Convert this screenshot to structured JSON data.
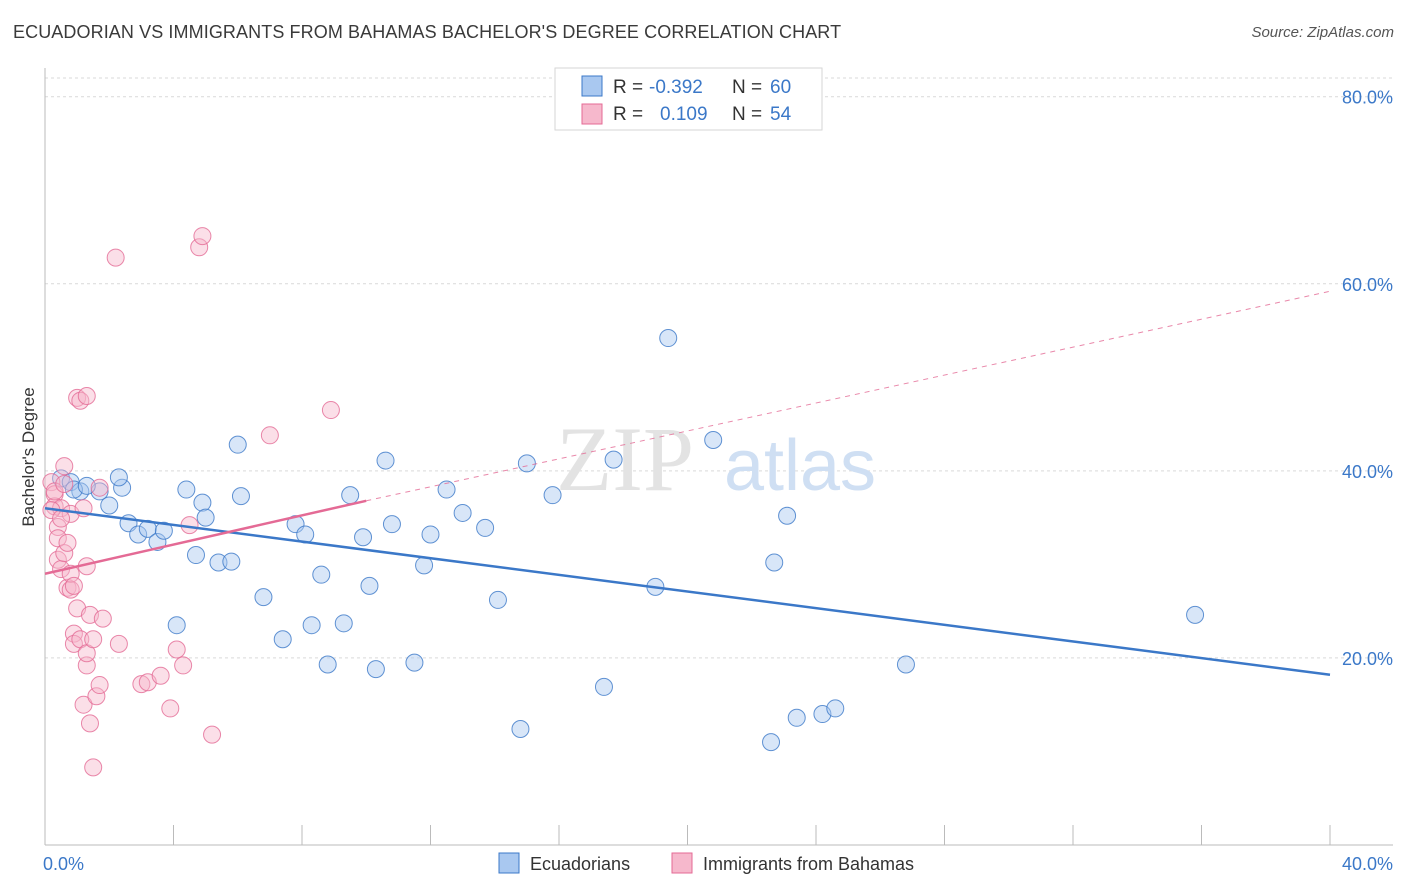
{
  "title": "ECUADORIAN VS IMMIGRANTS FROM BAHAMAS BACHELOR'S DEGREE CORRELATION CHART",
  "source": "Source: ZipAtlas.com",
  "watermark": {
    "zip": "ZIP",
    "atlas": "atlas"
  },
  "colors": {
    "blue": "#3b78c8",
    "blue_fill": "#a9c8f0",
    "pink": "#e46a95",
    "pink_fill": "#f6b8cc",
    "grid": "#d9d9d9"
  },
  "legend": {
    "rows": [
      {
        "r_label": "R =",
        "r_value": "-0.392",
        "n_label": "N =",
        "n_value": "60"
      },
      {
        "r_label": "R =",
        "r_value": "0.109",
        "n_label": "N =",
        "n_value": "54"
      }
    ]
  },
  "chart_data": {
    "type": "scatter",
    "title": "ECUADORIAN VS IMMIGRANTS FROM BAHAMAS BACHELOR'S DEGREE CORRELATION CHART",
    "xlabel": "",
    "ylabel": "Bachelor's Degree",
    "xlim": [
      0,
      40
    ],
    "ylim": [
      0,
      82
    ],
    "x_tick_labels": [
      "0.0%",
      "40.0%"
    ],
    "y_ticks": [
      20,
      40,
      60,
      80
    ],
    "y_tick_labels": [
      "20.0%",
      "40.0%",
      "60.0%",
      "80.0%"
    ],
    "grid": true,
    "series": [
      {
        "name": "Ecuadorians",
        "r": -0.392,
        "n": 60,
        "trend": {
          "x": [
            0,
            40
          ],
          "y": [
            36.0,
            18.2
          ],
          "dashed_extension": false
        },
        "points": [
          [
            0.5,
            39.2
          ],
          [
            0.8,
            38.8
          ],
          [
            1.1,
            37.8
          ],
          [
            1.7,
            37.8
          ],
          [
            2.4,
            38.2
          ],
          [
            2.3,
            39.3
          ],
          [
            2.0,
            36.3
          ],
          [
            0.9,
            38.0
          ],
          [
            2.6,
            34.4
          ],
          [
            2.9,
            33.2
          ],
          [
            3.2,
            33.8
          ],
          [
            3.5,
            32.4
          ],
          [
            3.7,
            33.6
          ],
          [
            4.4,
            38.0
          ],
          [
            4.9,
            36.6
          ],
          [
            5.4,
            30.2
          ],
          [
            5.8,
            30.3
          ],
          [
            6.1,
            37.3
          ],
          [
            5.0,
            35.0
          ],
          [
            6.0,
            42.8
          ],
          [
            4.7,
            31.0
          ],
          [
            4.1,
            23.5
          ],
          [
            6.8,
            26.5
          ],
          [
            7.4,
            22.0
          ],
          [
            7.8,
            34.3
          ],
          [
            8.1,
            33.2
          ],
          [
            8.3,
            23.5
          ],
          [
            8.6,
            28.9
          ],
          [
            8.8,
            19.3
          ],
          [
            9.3,
            23.7
          ],
          [
            9.5,
            37.4
          ],
          [
            9.9,
            32.9
          ],
          [
            10.1,
            27.7
          ],
          [
            10.3,
            18.8
          ],
          [
            10.6,
            41.1
          ],
          [
            10.8,
            34.3
          ],
          [
            11.5,
            19.5
          ],
          [
            11.8,
            29.9
          ],
          [
            12.0,
            33.2
          ],
          [
            12.5,
            38.0
          ],
          [
            13.0,
            35.5
          ],
          [
            13.7,
            33.9
          ],
          [
            14.1,
            26.2
          ],
          [
            14.8,
            12.4
          ],
          [
            15.0,
            40.8
          ],
          [
            15.8,
            37.4
          ],
          [
            17.4,
            16.9
          ],
          [
            17.7,
            41.2
          ],
          [
            19.0,
            27.6
          ],
          [
            19.4,
            54.2
          ],
          [
            20.8,
            43.3
          ],
          [
            22.6,
            11.0
          ],
          [
            22.7,
            30.2
          ],
          [
            23.1,
            35.2
          ],
          [
            23.4,
            13.6
          ],
          [
            24.2,
            14.0
          ],
          [
            24.6,
            14.6
          ],
          [
            26.8,
            19.3
          ],
          [
            35.8,
            24.6
          ],
          [
            1.3,
            38.4
          ]
        ]
      },
      {
        "name": "Immigrants from Bahamas",
        "r": 0.109,
        "n": 54,
        "trend": {
          "x": [
            0,
            10
          ],
          "y": [
            29.0,
            36.8
          ],
          "dashed_extension": true,
          "dashed_to": [
            40,
            59.2
          ]
        },
        "points": [
          [
            0.2,
            38.8
          ],
          [
            0.3,
            37.5
          ],
          [
            0.3,
            36.2
          ],
          [
            0.4,
            34.0
          ],
          [
            0.4,
            32.8
          ],
          [
            0.5,
            36.0
          ],
          [
            0.4,
            30.5
          ],
          [
            0.5,
            29.5
          ],
          [
            0.6,
            40.5
          ],
          [
            0.6,
            31.2
          ],
          [
            0.7,
            32.3
          ],
          [
            0.7,
            27.5
          ],
          [
            0.8,
            35.4
          ],
          [
            0.8,
            27.3
          ],
          [
            0.9,
            22.6
          ],
          [
            0.9,
            21.5
          ],
          [
            0.8,
            29.0
          ],
          [
            0.9,
            27.7
          ],
          [
            1.0,
            47.8
          ],
          [
            1.1,
            47.5
          ],
          [
            1.0,
            25.3
          ],
          [
            1.1,
            22.0
          ],
          [
            1.2,
            36.0
          ],
          [
            1.3,
            29.8
          ],
          [
            1.2,
            15.0
          ],
          [
            1.3,
            19.2
          ],
          [
            1.3,
            20.5
          ],
          [
            1.4,
            24.6
          ],
          [
            1.3,
            48.0
          ],
          [
            1.5,
            22.0
          ],
          [
            1.4,
            13.0
          ],
          [
            1.5,
            8.3
          ],
          [
            1.6,
            15.9
          ],
          [
            1.7,
            17.1
          ],
          [
            1.7,
            38.2
          ],
          [
            1.8,
            24.2
          ],
          [
            2.2,
            62.8
          ],
          [
            2.3,
            21.5
          ],
          [
            3.0,
            17.2
          ],
          [
            3.2,
            17.4
          ],
          [
            3.6,
            18.1
          ],
          [
            3.9,
            14.6
          ],
          [
            4.1,
            20.9
          ],
          [
            4.3,
            19.2
          ],
          [
            4.5,
            34.2
          ],
          [
            4.8,
            63.9
          ],
          [
            4.9,
            65.1
          ],
          [
            5.2,
            11.8
          ],
          [
            7.0,
            43.8
          ],
          [
            8.9,
            46.5
          ],
          [
            0.3,
            37.8
          ],
          [
            0.2,
            35.8
          ],
          [
            0.6,
            38.6
          ],
          [
            0.5,
            34.9
          ]
        ]
      }
    ]
  },
  "bottom_legend": [
    "Ecuadorians",
    "Immigrants from Bahamas"
  ]
}
